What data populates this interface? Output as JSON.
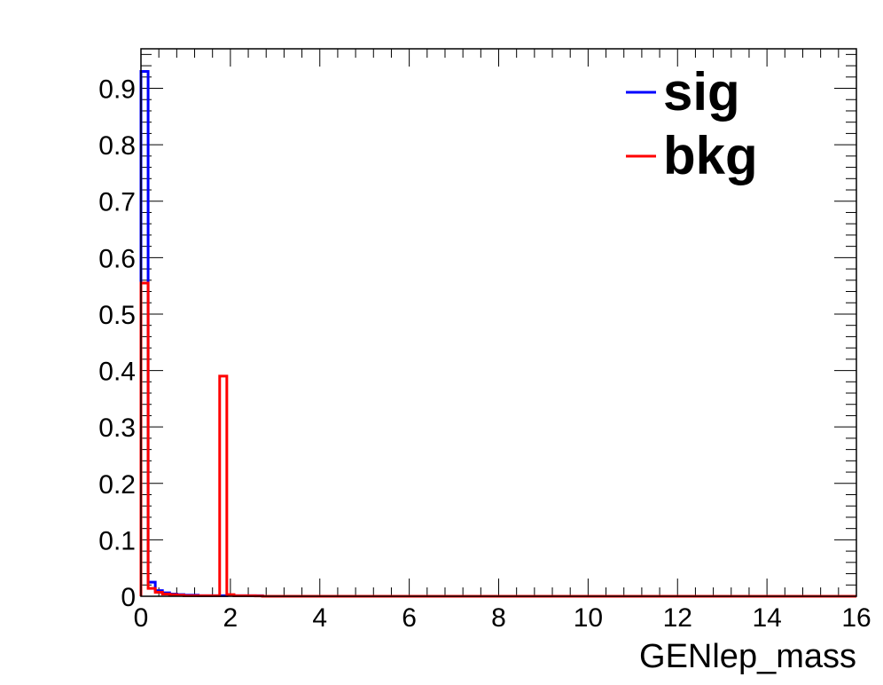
{
  "chart_data": {
    "type": "line",
    "style": "step-histogram",
    "xlabel": "GENlep_mass",
    "ylabel": "",
    "xlim": [
      0,
      16
    ],
    "ylim": [
      0,
      0.97
    ],
    "x_ticks": [
      0,
      2,
      4,
      6,
      8,
      10,
      12,
      14,
      16
    ],
    "x_tick_labels": [
      "0",
      "2",
      "4",
      "6",
      "8",
      "10",
      "12",
      "14",
      "16"
    ],
    "y_ticks": [
      0,
      0.1,
      0.2,
      0.3,
      0.4,
      0.5,
      0.6,
      0.7,
      0.8,
      0.9
    ],
    "y_tick_labels": [
      "0",
      "0.1",
      "0.2",
      "0.3",
      "0.4",
      "0.5",
      "0.6",
      "0.7",
      "0.8",
      "0.9"
    ],
    "bin_width": 0.16,
    "grid": false,
    "legend_position": "top-right",
    "series": [
      {
        "name": "sig",
        "color": "#0000ff",
        "bin_edges": [
          0,
          0.16,
          0.32,
          0.48,
          0.64,
          0.8,
          0.96,
          1.12,
          1.28,
          1.44,
          1.6,
          1.76,
          1.92,
          2.08,
          2.24,
          2.4,
          2.56,
          2.72,
          16
        ],
        "values": [
          0.93,
          0.025,
          0.01,
          0.006,
          0.004,
          0.003,
          0.002,
          0.002,
          0.001,
          0.001,
          0.001,
          0.001,
          0.002,
          0.001,
          0.001,
          0.001,
          0.001,
          0
        ]
      },
      {
        "name": "bkg",
        "color": "#ff0000",
        "bin_edges": [
          0,
          0.16,
          0.32,
          0.48,
          0.64,
          0.8,
          0.96,
          1.12,
          1.28,
          1.44,
          1.6,
          1.76,
          1.92,
          2.08,
          2.24,
          2.4,
          2.56,
          2.72,
          16
        ],
        "values": [
          0.555,
          0.014,
          0.007,
          0.004,
          0.003,
          0.002,
          0.001,
          0.001,
          0.001,
          0.001,
          0.001,
          0.39,
          0.003,
          0.001,
          0.001,
          0.001,
          0.0005,
          0
        ]
      }
    ]
  }
}
